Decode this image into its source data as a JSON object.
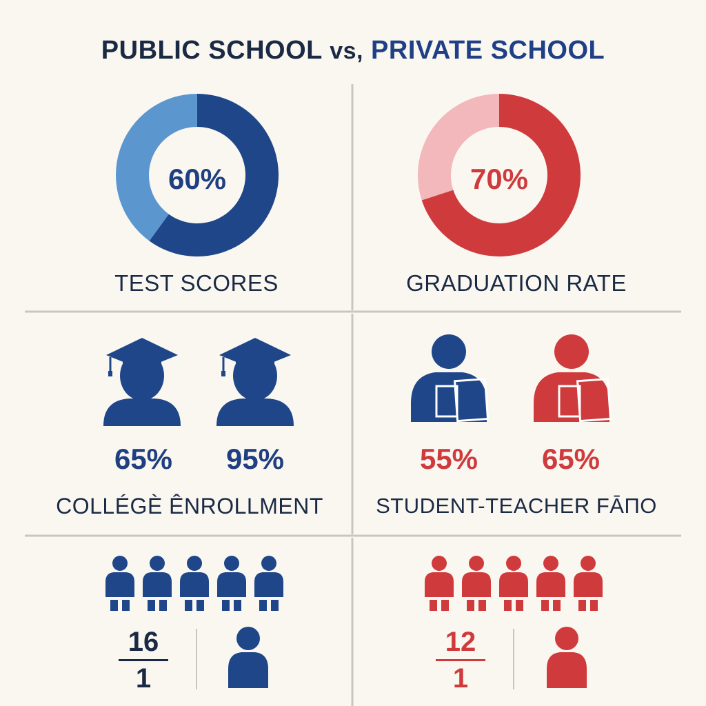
{
  "title": {
    "left": "PUBLIC SCHOOL",
    "vs": "vs,",
    "right": "PRIVATE SCHOOL"
  },
  "colors": {
    "navy": "#1f4688",
    "navy_light": "#5b96cf",
    "red": "#cf3b3d",
    "red_light": "#f2b8bb",
    "text_dark": "#1b2a44",
    "divider": "#c9c6c0"
  },
  "test_scores": {
    "value_label": "60%",
    "fill_fraction": 0.6,
    "label": "TEST SCORES"
  },
  "graduation_rate": {
    "value_label": "70%",
    "fill_fraction": 0.7,
    "label": "GRADUATION RATE"
  },
  "college_enrollment": {
    "label": "COLLÉGÈ ÊNROLLMENT",
    "public_value": "65%",
    "private_value": "95%",
    "icons": [
      "graduate-icon",
      "graduate-icon"
    ]
  },
  "student_teacher": {
    "label": "STUDENT-TEACHER FĀПO",
    "public_value": "55%",
    "private_value": "65%",
    "icons": [
      "student-backpack-icon",
      "student-backpack-icon"
    ]
  },
  "ratio_public": {
    "numerator": "16",
    "denominator": "1",
    "students_shown": 5
  },
  "ratio_private": {
    "numerator": "12",
    "denominator": "1",
    "students_shown": 5
  }
}
